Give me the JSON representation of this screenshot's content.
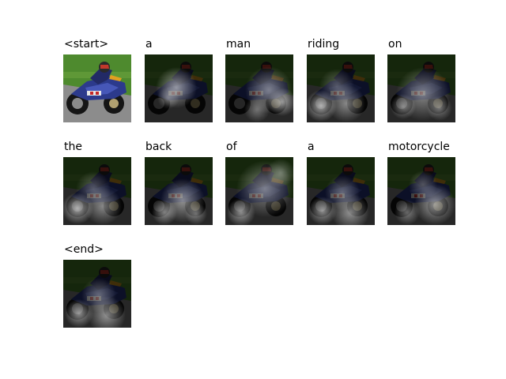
{
  "tokens": [
    {
      "word": "<start>",
      "attention": "none"
    },
    {
      "word": "a",
      "attention": "center"
    },
    {
      "word": "man",
      "attention": "right-spread"
    },
    {
      "word": "riding",
      "attention": "left-bottom"
    },
    {
      "word": "on",
      "attention": "center-wide"
    },
    {
      "word": "the",
      "attention": "left-bottom"
    },
    {
      "word": "back",
      "attention": "center-bottom"
    },
    {
      "word": "of",
      "attention": "wide"
    },
    {
      "word": "a",
      "attention": "bottom-spread"
    },
    {
      "word": "motorcycle",
      "attention": "right-bottom"
    },
    {
      "word": "<end>",
      "attention": "bottom-spread"
    }
  ],
  "colors": {
    "bike": "#2c3a8c",
    "grass": "#4e8a2e",
    "track": "#8c8c8c",
    "overlay": "#000000",
    "highlight": "#ffffff"
  }
}
